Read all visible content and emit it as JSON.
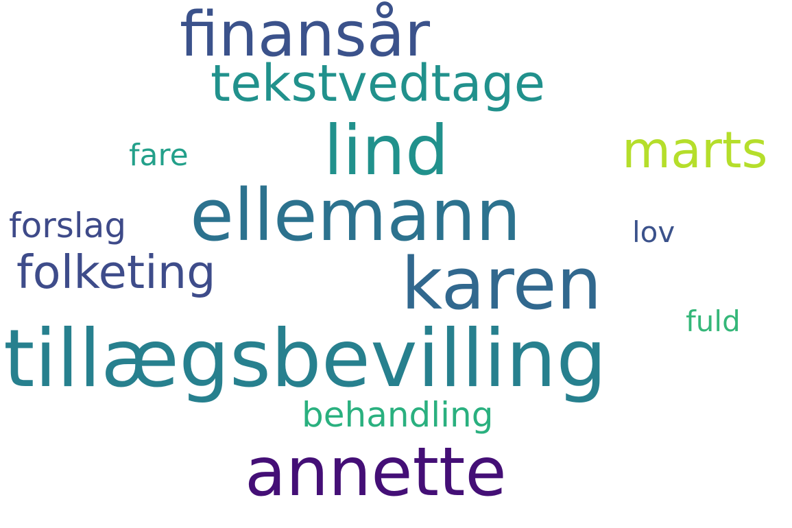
{
  "words": [
    {
      "text": "finansår",
      "color": "#3b528b"
    },
    {
      "text": "tekstvedtage",
      "color": "#21918c"
    },
    {
      "text": "lind",
      "color": "#21918c"
    },
    {
      "text": "marts",
      "color": "#b5de2b"
    },
    {
      "text": "fare",
      "color": "#23a08a"
    },
    {
      "text": "ellemann",
      "color": "#2c728e"
    },
    {
      "text": "forslag",
      "color": "#3e4a89"
    },
    {
      "text": "lov",
      "color": "#3b528b"
    },
    {
      "text": "folketing",
      "color": "#3e4c8a"
    },
    {
      "text": "karen",
      "color": "#31688e"
    },
    {
      "text": "fuld",
      "color": "#35b779"
    },
    {
      "text": "tillægsbevilling",
      "color": "#27808e"
    },
    {
      "text": "behandling",
      "color": "#2ab07f"
    },
    {
      "text": "annette",
      "color": "#440f76"
    }
  ]
}
